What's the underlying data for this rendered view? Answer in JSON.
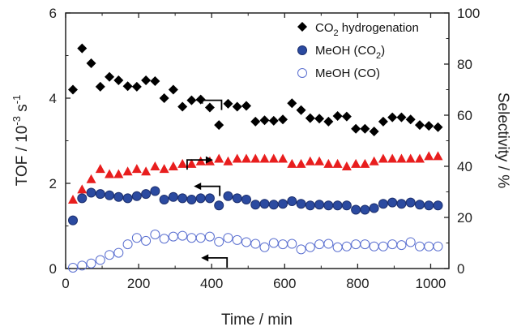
{
  "chart_data": {
    "type": "scatter",
    "xlabel": "Time / min",
    "ylabel_left": {
      "prefix": "TOF / 10",
      "exp": "-3",
      "mid": " s",
      "exp2": "-1"
    },
    "ylabel_right": "Selectivity / %",
    "xlim": [
      0,
      1050
    ],
    "ylim_left": [
      0,
      6
    ],
    "ylim_right": [
      0,
      100
    ],
    "xticks": [
      "0",
      "200",
      "400",
      "600",
      "800",
      "1000"
    ],
    "yticks_left": [
      "0",
      "2",
      "4",
      "6"
    ],
    "yticks_right": [
      "0",
      "20",
      "40",
      "60",
      "80",
      "100"
    ],
    "legend_position": "top-right",
    "legend": [
      {
        "text_main": "CO",
        "sub": "2",
        "text_rest": " hydrogenation"
      },
      {
        "text_main": "MeOH (CO",
        "sub": "2",
        "text_rest": ")"
      },
      {
        "text_main": "MeOH (CO)",
        "sub": "",
        "text_rest": ""
      }
    ],
    "colors": {
      "co2_hydrogenation": "#000000",
      "meoh_co2": "#2b4aa0",
      "meoh_co": "#5a6fd0",
      "selectivity": "#e81e1e"
    },
    "series": [
      {
        "name": "CO2 hydrogenation",
        "axis": "left",
        "marker": "diamond",
        "x": [
          20,
          45,
          70,
          95,
          120,
          145,
          170,
          195,
          220,
          245,
          270,
          295,
          320,
          345,
          370,
          395,
          420,
          445,
          470,
          495,
          520,
          545,
          570,
          595,
          620,
          645,
          670,
          695,
          720,
          745,
          770,
          795,
          820,
          845,
          870,
          895,
          920,
          945,
          970,
          995,
          1020
        ],
        "y": [
          4.2,
          5.17,
          4.82,
          4.27,
          4.5,
          4.42,
          4.28,
          4.27,
          4.42,
          4.4,
          4.0,
          4.2,
          3.8,
          3.95,
          3.97,
          3.78,
          3.37,
          3.87,
          3.8,
          3.82,
          3.45,
          3.48,
          3.47,
          3.5,
          3.88,
          3.72,
          3.53,
          3.52,
          3.45,
          3.58,
          3.57,
          3.28,
          3.28,
          3.22,
          3.45,
          3.55,
          3.55,
          3.5,
          3.37,
          3.35,
          3.32
        ]
      },
      {
        "name": "MeOH (CO2)",
        "axis": "left",
        "marker": "filled-circle",
        "x": [
          20,
          45,
          70,
          95,
          120,
          145,
          170,
          195,
          220,
          245,
          270,
          295,
          320,
          345,
          370,
          395,
          420,
          445,
          470,
          495,
          520,
          545,
          570,
          595,
          620,
          645,
          670,
          695,
          720,
          745,
          770,
          795,
          820,
          845,
          870,
          895,
          920,
          945,
          970,
          995,
          1020
        ],
        "y": [
          1.13,
          1.65,
          1.78,
          1.75,
          1.72,
          1.68,
          1.65,
          1.7,
          1.75,
          1.82,
          1.62,
          1.68,
          1.65,
          1.62,
          1.65,
          1.65,
          1.48,
          1.7,
          1.65,
          1.62,
          1.5,
          1.52,
          1.5,
          1.52,
          1.58,
          1.52,
          1.48,
          1.5,
          1.48,
          1.48,
          1.48,
          1.38,
          1.38,
          1.42,
          1.52,
          1.55,
          1.52,
          1.55,
          1.5,
          1.48,
          1.48
        ]
      },
      {
        "name": "MeOH (CO)",
        "axis": "left",
        "marker": "open-circle",
        "x": [
          20,
          45,
          70,
          95,
          120,
          145,
          170,
          195,
          220,
          245,
          270,
          295,
          320,
          345,
          370,
          395,
          420,
          445,
          470,
          495,
          520,
          545,
          570,
          595,
          620,
          645,
          670,
          695,
          720,
          745,
          770,
          795,
          820,
          845,
          870,
          895,
          920,
          945,
          970,
          995,
          1020
        ],
        "y": [
          0.02,
          0.07,
          0.12,
          0.2,
          0.32,
          0.37,
          0.57,
          0.72,
          0.65,
          0.8,
          0.7,
          0.75,
          0.77,
          0.72,
          0.72,
          0.75,
          0.63,
          0.72,
          0.67,
          0.62,
          0.58,
          0.5,
          0.6,
          0.57,
          0.58,
          0.45,
          0.5,
          0.57,
          0.58,
          0.5,
          0.52,
          0.57,
          0.57,
          0.52,
          0.52,
          0.57,
          0.55,
          0.62,
          0.52,
          0.52,
          0.52
        ]
      },
      {
        "name": "Selectivity",
        "axis": "right",
        "marker": "triangle",
        "x": [
          20,
          45,
          70,
          95,
          120,
          145,
          170,
          195,
          220,
          245,
          270,
          295,
          320,
          345,
          370,
          395,
          420,
          445,
          470,
          495,
          520,
          545,
          570,
          595,
          620,
          645,
          670,
          695,
          720,
          745,
          770,
          795,
          820,
          845,
          870,
          895,
          920,
          945,
          970,
          995,
          1020
        ],
        "y": [
          27,
          31,
          35,
          39,
          37,
          37,
          38,
          39,
          38,
          40,
          39,
          40,
          41,
          41,
          42,
          42,
          43,
          42,
          43,
          43,
          43,
          43,
          43,
          43,
          41,
          41,
          42,
          42,
          41,
          41,
          40,
          41,
          41,
          42,
          43,
          43,
          43,
          43,
          43,
          44,
          44
        ]
      }
    ],
    "annotations": {
      "arrows": [
        {
          "direction": "left",
          "x": 405,
          "y_left": 3.95
        },
        {
          "direction": "right",
          "x": 355,
          "y_left": 2.55
        },
        {
          "direction": "left",
          "x": 400,
          "y_left": 1.93
        },
        {
          "direction": "left",
          "x": 420,
          "y_left": 0.25
        }
      ]
    }
  }
}
